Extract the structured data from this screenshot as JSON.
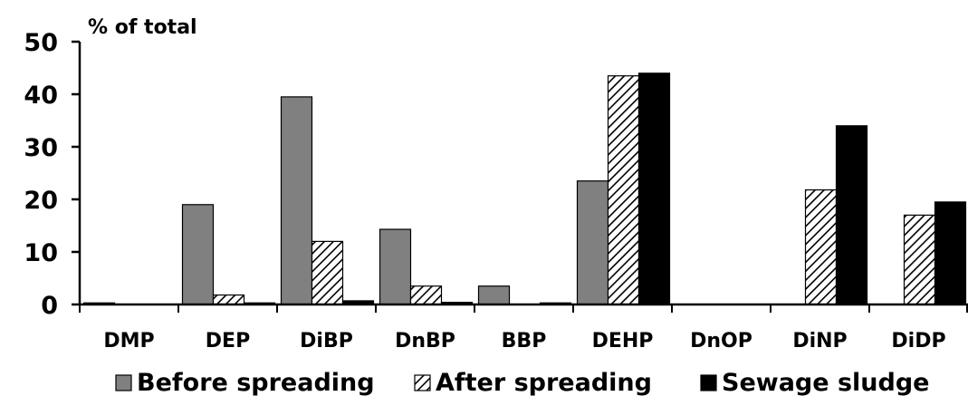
{
  "chart_data": {
    "type": "bar",
    "ylabel": "% of total",
    "ylim": [
      0,
      50
    ],
    "yticks": [
      0,
      10,
      20,
      30,
      40,
      50
    ],
    "grid": false,
    "legend_position": "bottom",
    "categories": [
      "DMP",
      "DEP",
      "DiBP",
      "DnBP",
      "BBP",
      "DEHP",
      "DnOP",
      "DiNP",
      "DiDP"
    ],
    "series": [
      {
        "name": "Before spreading",
        "fill": "#808080",
        "values": [
          0.3,
          19,
          39.5,
          14.3,
          3.5,
          23.5,
          0,
          0,
          0
        ]
      },
      {
        "name": "After spreading",
        "fill": "hatch",
        "values": [
          0,
          1.8,
          12,
          3.5,
          0,
          43.5,
          0,
          21.8,
          17
        ]
      },
      {
        "name": "Sewage sludge",
        "fill": "#000000",
        "values": [
          0,
          0.3,
          0.7,
          0.4,
          0.3,
          44,
          0,
          34,
          19.5
        ]
      }
    ]
  }
}
